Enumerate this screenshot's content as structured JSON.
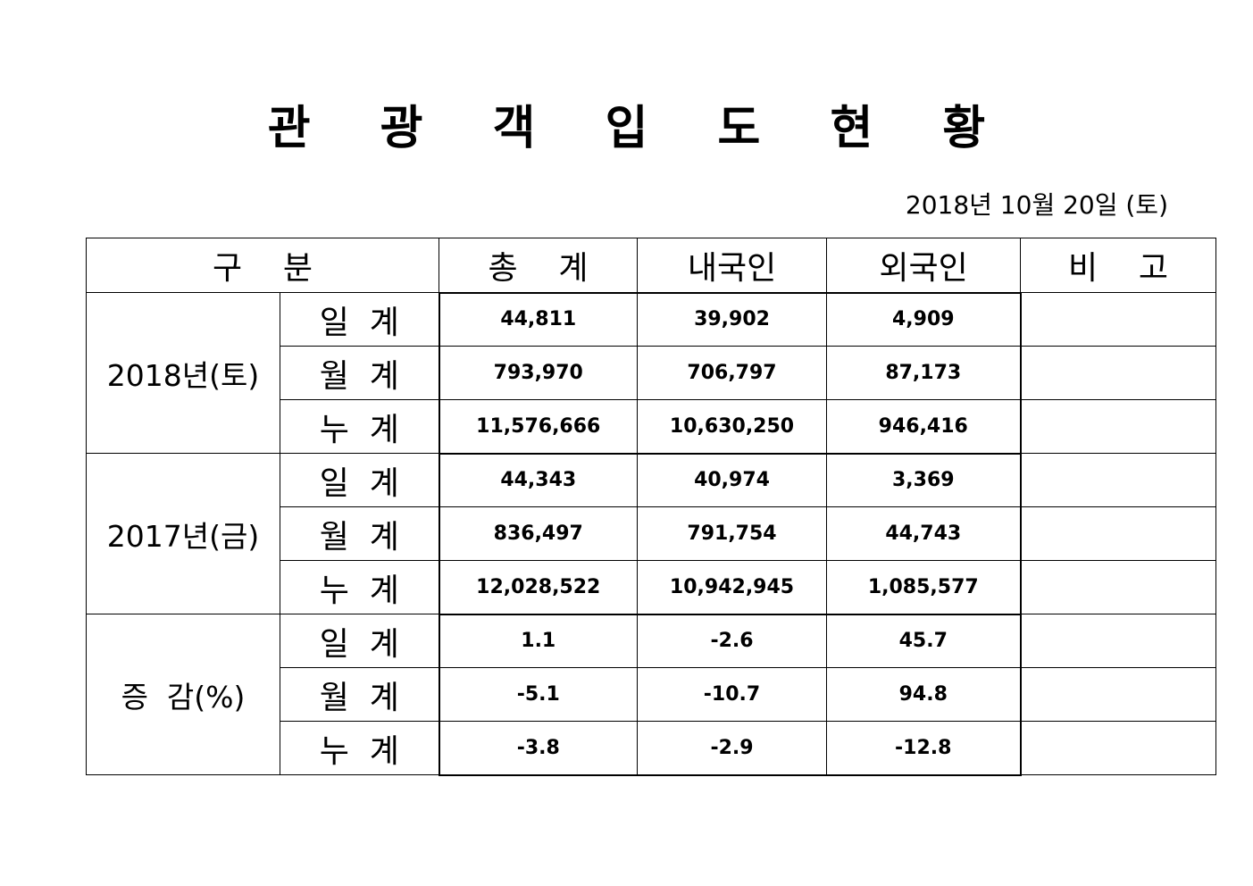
{
  "title": "관 광 객 입 도 현 황",
  "date": "2018년 10월 20일 (토)",
  "table": {
    "headers": {
      "category": "구    분",
      "total": "총    계",
      "domestic": "내국인",
      "foreign": "외국인",
      "remarks": "비    고"
    },
    "groups": [
      {
        "label": "2018년(토)",
        "rows": [
          {
            "label": "일  계",
            "total": "44,811",
            "domestic": "39,902",
            "foreign": "4,909",
            "remarks": ""
          },
          {
            "label": "월  계",
            "total": "793,970",
            "domestic": "706,797",
            "foreign": "87,173",
            "remarks": ""
          },
          {
            "label": "누  계",
            "total": "11,576,666",
            "domestic": "10,630,250",
            "foreign": "946,416",
            "remarks": ""
          }
        ]
      },
      {
        "label": "2017년(금)",
        "rows": [
          {
            "label": "일  계",
            "total": "44,343",
            "domestic": "40,974",
            "foreign": "3,369",
            "remarks": ""
          },
          {
            "label": "월  계",
            "total": "836,497",
            "domestic": "791,754",
            "foreign": "44,743",
            "remarks": ""
          },
          {
            "label": "누  계",
            "total": "12,028,522",
            "domestic": "10,942,945",
            "foreign": "1,085,577",
            "remarks": ""
          }
        ]
      },
      {
        "label": "증  감(%)",
        "rows": [
          {
            "label": "일  계",
            "total": "1.1",
            "domestic": "-2.6",
            "foreign": "45.7",
            "remarks": ""
          },
          {
            "label": "월  계",
            "total": "-5.1",
            "domestic": "-10.7",
            "foreign": "94.8",
            "remarks": ""
          },
          {
            "label": "누  계",
            "total": "-3.8",
            "domestic": "-2.9",
            "foreign": "-12.8",
            "remarks": ""
          }
        ]
      }
    ]
  }
}
